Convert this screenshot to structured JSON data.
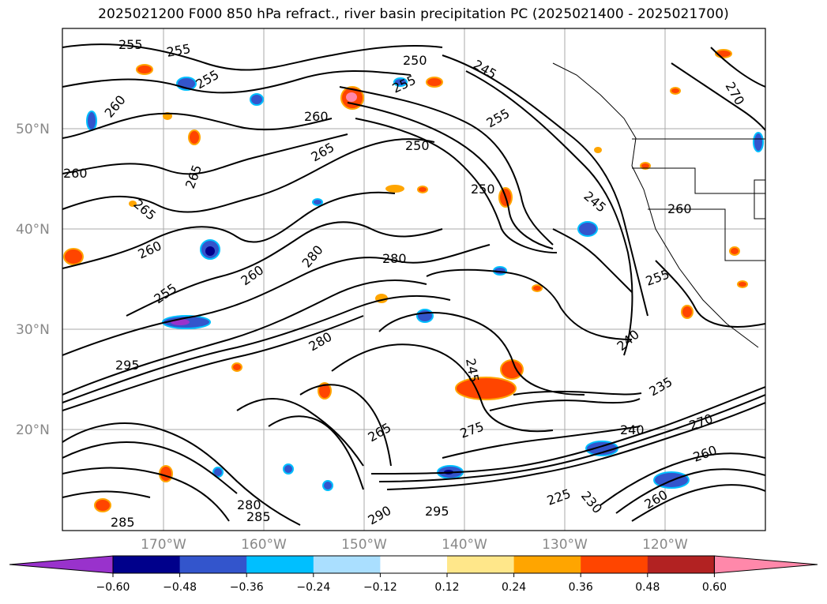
{
  "title": "2025021200 F000 850 hPa refract., river basin precipitation PC (2025021400 - 2025021700)",
  "lat_labels": [
    "50°N",
    "40°N",
    "30°N",
    "20°N"
  ],
  "lon_labels": [
    "170°W",
    "160°W",
    "150°W",
    "140°W",
    "130°W",
    "120°W"
  ],
  "colorbar": {
    "ticks": [
      "−0.60",
      "−0.48",
      "−0.36",
      "−0.24",
      "−0.12",
      "0.12",
      "0.24",
      "0.36",
      "0.48",
      "0.60"
    ],
    "colors": [
      "#9932cc",
      "#00008b",
      "#3355cc",
      "#00bfff",
      "#aadfff",
      "#ffffff",
      "#ffe78a",
      "#ffa500",
      "#ff4500",
      "#b22222",
      "#ff88aa"
    ]
  },
  "contour_labels": [
    "255",
    "255",
    "255",
    "260",
    "260",
    "265",
    "265",
    "260",
    "265",
    "260",
    "255",
    "260",
    "280",
    "280",
    "250",
    "255",
    "245",
    "250",
    "250",
    "245",
    "255",
    "270",
    "260",
    "240",
    "255",
    "235",
    "270",
    "260",
    "295",
    "280",
    "295",
    "285",
    "280",
    "285",
    "290",
    "275",
    "265",
    "245",
    "230",
    "260",
    "240",
    "225"
  ]
}
